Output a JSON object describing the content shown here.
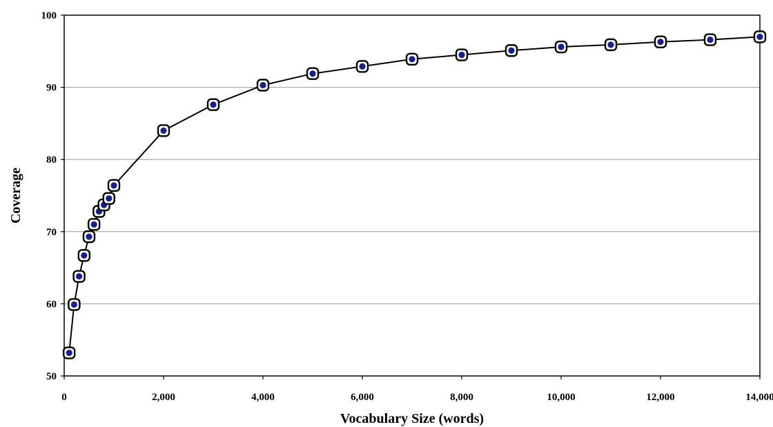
{
  "chart_data": {
    "type": "line",
    "title": "",
    "xlabel": "Vocabulary Size (words)",
    "ylabel": "Coverage",
    "xlim": [
      0,
      14000
    ],
    "ylim": [
      50,
      100
    ],
    "x_ticks": [
      0,
      2000,
      4000,
      6000,
      8000,
      10000,
      12000,
      14000
    ],
    "x_tick_labels": [
      "0",
      "2,000",
      "4,000",
      "6,000",
      "8,000",
      "10,000",
      "12,000",
      "14,000"
    ],
    "y_ticks": [
      50,
      60,
      70,
      80,
      90,
      100
    ],
    "y_tick_labels": [
      "50",
      "60",
      "70",
      "80",
      "90",
      "100"
    ],
    "grid": "horizontal",
    "legend": "none",
    "series": [
      {
        "x": [
          100,
          200,
          300,
          400,
          500,
          600,
          700,
          800,
          900,
          1000,
          2000,
          3000,
          4000,
          5000,
          6000,
          7000,
          8000,
          9000,
          10000,
          11000,
          12000,
          13000,
          14000
        ],
        "y": [
          53.2,
          59.9,
          63.8,
          66.7,
          69.3,
          71.0,
          72.8,
          73.7,
          74.6,
          76.4,
          84.0,
          87.6,
          90.3,
          91.9,
          92.9,
          93.9,
          94.5,
          95.1,
          95.6,
          95.9,
          96.3,
          96.6,
          97.0
        ]
      }
    ],
    "colors": {
      "line": "#000000",
      "marker_fill": "#1a1f8f",
      "marker_outline": "#000000",
      "grid": "#9a9a9a"
    }
  }
}
